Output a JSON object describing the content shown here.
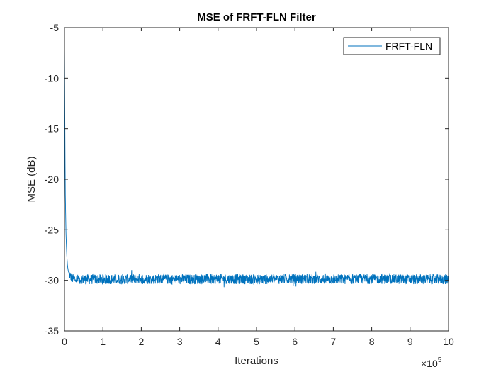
{
  "chart_data": {
    "type": "line",
    "title": "MSE of FRFT-FLN Filter",
    "xlabel": "Iterations",
    "ylabel": "MSE (dB)",
    "x_exponent_label": "×10",
    "x_exponent_power": "5",
    "xlim": [
      0,
      10
    ],
    "ylim": [
      -35,
      -5
    ],
    "x_ticks": [
      "0",
      "1",
      "2",
      "3",
      "4",
      "5",
      "6",
      "7",
      "8",
      "9",
      "10"
    ],
    "y_ticks": [
      "-5",
      "-10",
      "-15",
      "-20",
      "-25",
      "-30",
      "-35"
    ],
    "grid": false,
    "legend_position": "top-right",
    "series": [
      {
        "name": "FRFT-FLN",
        "color": "#0072BD",
        "x": [
          0,
          0.01,
          0.02,
          0.04,
          0.06,
          0.08,
          0.1,
          0.15,
          0.2,
          0.3,
          0.5,
          1,
          2,
          3,
          4,
          5,
          6,
          7,
          8,
          9,
          9.95,
          10
        ],
        "y": [
          -6.5,
          -14,
          -21,
          -25.5,
          -27.5,
          -28.6,
          -29.1,
          -29.6,
          -29.8,
          -29.9,
          -29.9,
          -29.9,
          -29.85,
          -29.9,
          -29.85,
          -29.9,
          -29.85,
          -29.9,
          -29.85,
          -29.9,
          -29.9,
          -29.9
        ]
      }
    ]
  }
}
